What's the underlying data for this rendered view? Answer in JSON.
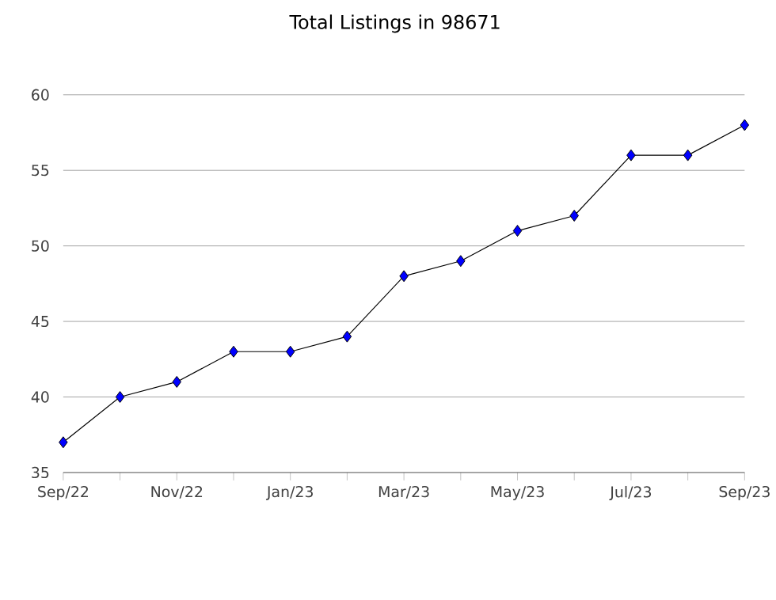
{
  "chart_data": {
    "type": "line",
    "title": "Total Listings in 98671",
    "categories": [
      "Sep/22",
      null,
      "Nov/22",
      null,
      "Jan/23",
      null,
      "Mar/23",
      null,
      "May/23",
      null,
      "Jul/23",
      null,
      "Sep/23"
    ],
    "series": [
      {
        "color": "#0000ff",
        "values": [
          37,
          40,
          41,
          43,
          43,
          44,
          48,
          49,
          51,
          52,
          56,
          56,
          58
        ]
      }
    ],
    "ylim": [
      35,
      60
    ],
    "yticks": [
      35,
      40,
      45,
      50,
      55,
      60
    ],
    "grid": "y",
    "marker": "diamond",
    "line_style": "solid"
  }
}
